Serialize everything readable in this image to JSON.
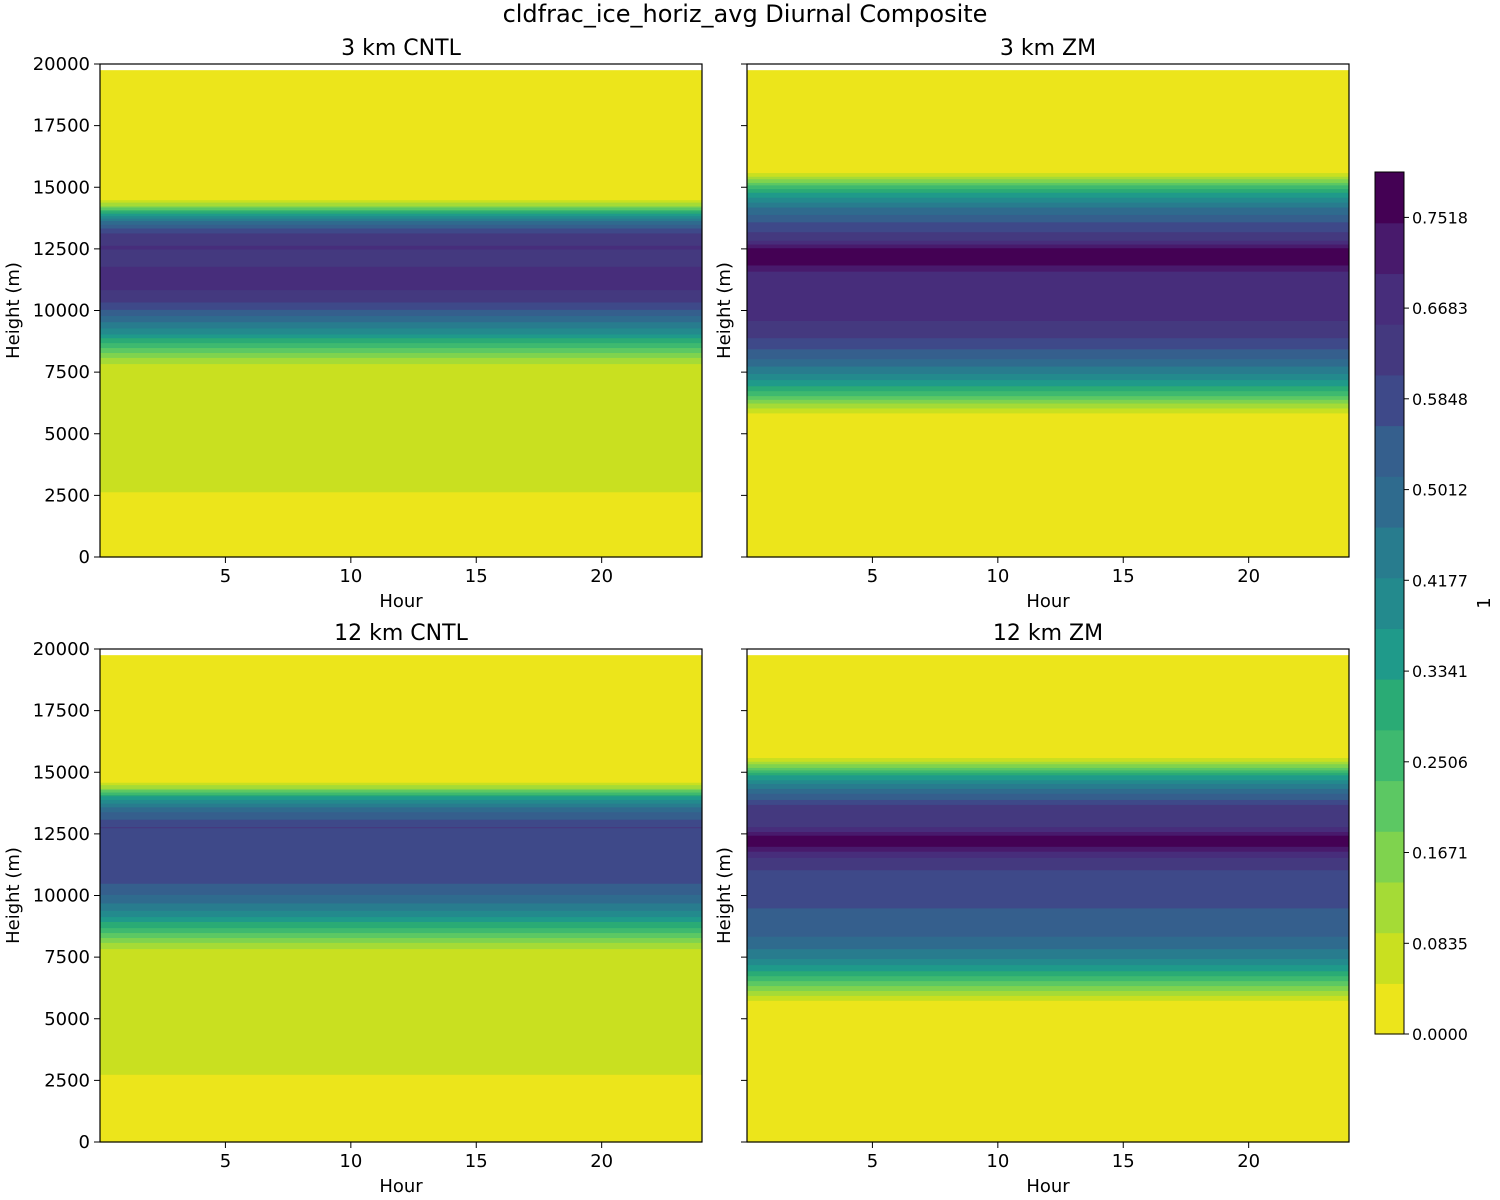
{
  "chart_data": {
    "type": "contourf",
    "title": "cldfrac_ice_horiz_avg Diurnal Composite",
    "xlabel": "Hour",
    "ylabel": "Height (m)",
    "xlim": [
      0,
      24
    ],
    "ylim": [
      0,
      20000
    ],
    "xticks": [
      5,
      10,
      15,
      20
    ],
    "yticks": [
      0,
      2500,
      5000,
      7500,
      10000,
      12500,
      15000,
      17500,
      20000
    ],
    "ytick_labels": [
      "0",
      "2500",
      "5000",
      "7500",
      "10000",
      "12500",
      "15000",
      "17500",
      "20000"
    ],
    "model_top_m": 19750,
    "colorbar": {
      "label": "1",
      "vmin": 0.0,
      "vmax": 0.7936,
      "n_levels": 19,
      "tick_values": [
        0.0,
        0.0835,
        0.1671,
        0.2506,
        0.3341,
        0.4177,
        0.5012,
        0.5848,
        0.6683,
        0.7518
      ],
      "tick_labels": [
        "0.0000",
        "0.0835",
        "0.1671",
        "0.2506",
        "0.3341",
        "0.4177",
        "0.5012",
        "0.5848",
        "0.6683",
        "0.7518"
      ],
      "colors": [
        "#ece51b",
        "#c9e020",
        "#a5db36",
        "#7fd34e",
        "#5cc863",
        "#3eb96f",
        "#2aab75",
        "#1f9a8a",
        "#238a8d",
        "#287c8e",
        "#2f6b8e",
        "#355f8d",
        "#3e4989",
        "#44397f",
        "#472d7b",
        "#481a6c",
        "#440154"
      ]
    },
    "panels": [
      {
        "title": "3 km CNTL",
        "profile": [
          {
            "height": 0,
            "value": 0.0
          },
          {
            "height": 2500,
            "value": 0.02
          },
          {
            "height": 2700,
            "value": 0.06
          },
          {
            "height": 5000,
            "value": 0.065
          },
          {
            "height": 7700,
            "value": 0.06
          },
          {
            "height": 8100,
            "value": 0.14
          },
          {
            "height": 8600,
            "value": 0.25
          },
          {
            "height": 9100,
            "value": 0.38
          },
          {
            "height": 9700,
            "value": 0.5
          },
          {
            "height": 10300,
            "value": 0.6
          },
          {
            "height": 11000,
            "value": 0.67
          },
          {
            "height": 11600,
            "value": 0.68
          },
          {
            "height": 12100,
            "value": 0.62
          },
          {
            "height": 12600,
            "value": 0.66
          },
          {
            "height": 13200,
            "value": 0.6
          },
          {
            "height": 13700,
            "value": 0.45
          },
          {
            "height": 14000,
            "value": 0.3
          },
          {
            "height": 14300,
            "value": 0.12
          },
          {
            "height": 14600,
            "value": 0.02
          },
          {
            "height": 19750,
            "value": 0.0
          }
        ]
      },
      {
        "title": "3 km ZM",
        "profile": [
          {
            "height": 0,
            "value": 0.0
          },
          {
            "height": 5700,
            "value": 0.02
          },
          {
            "height": 6100,
            "value": 0.1
          },
          {
            "height": 6600,
            "value": 0.25
          },
          {
            "height": 7300,
            "value": 0.4
          },
          {
            "height": 8100,
            "value": 0.52
          },
          {
            "height": 8800,
            "value": 0.6
          },
          {
            "height": 9500,
            "value": 0.65
          },
          {
            "height": 10500,
            "value": 0.68
          },
          {
            "height": 11600,
            "value": 0.7
          },
          {
            "height": 12100,
            "value": 0.79
          },
          {
            "height": 12400,
            "value": 0.79
          },
          {
            "height": 12900,
            "value": 0.64
          },
          {
            "height": 13600,
            "value": 0.56
          },
          {
            "height": 14300,
            "value": 0.45
          },
          {
            "height": 14900,
            "value": 0.3
          },
          {
            "height": 15300,
            "value": 0.15
          },
          {
            "height": 15700,
            "value": 0.02
          },
          {
            "height": 19750,
            "value": 0.0
          }
        ]
      },
      {
        "title": "12 km CNTL",
        "profile": [
          {
            "height": 0,
            "value": 0.0
          },
          {
            "height": 2600,
            "value": 0.02
          },
          {
            "height": 2800,
            "value": 0.06
          },
          {
            "height": 5000,
            "value": 0.065
          },
          {
            "height": 7700,
            "value": 0.06
          },
          {
            "height": 8100,
            "value": 0.14
          },
          {
            "height": 8700,
            "value": 0.28
          },
          {
            "height": 9300,
            "value": 0.4
          },
          {
            "height": 9900,
            "value": 0.5
          },
          {
            "height": 10600,
            "value": 0.57
          },
          {
            "height": 11500,
            "value": 0.56
          },
          {
            "height": 12200,
            "value": 0.58
          },
          {
            "height": 12800,
            "value": 0.61
          },
          {
            "height": 13500,
            "value": 0.5
          },
          {
            "height": 14000,
            "value": 0.35
          },
          {
            "height": 14400,
            "value": 0.12
          },
          {
            "height": 14700,
            "value": 0.02
          },
          {
            "height": 19750,
            "value": 0.0
          }
        ]
      },
      {
        "title": "12 km ZM",
        "profile": [
          {
            "height": 0,
            "value": 0.0
          },
          {
            "height": 5600,
            "value": 0.02
          },
          {
            "height": 6000,
            "value": 0.1
          },
          {
            "height": 6600,
            "value": 0.25
          },
          {
            "height": 7300,
            "value": 0.4
          },
          {
            "height": 8100,
            "value": 0.5
          },
          {
            "height": 9000,
            "value": 0.55
          },
          {
            "height": 10000,
            "value": 0.57
          },
          {
            "height": 11000,
            "value": 0.6
          },
          {
            "height": 11700,
            "value": 0.67
          },
          {
            "height": 12100,
            "value": 0.77
          },
          {
            "height": 12400,
            "value": 0.76
          },
          {
            "height": 12900,
            "value": 0.62
          },
          {
            "height": 13500,
            "value": 0.65
          },
          {
            "height": 14200,
            "value": 0.5
          },
          {
            "height": 14900,
            "value": 0.33
          },
          {
            "height": 15300,
            "value": 0.15
          },
          {
            "height": 15700,
            "value": 0.02
          },
          {
            "height": 19750,
            "value": 0.0
          }
        ]
      }
    ]
  }
}
